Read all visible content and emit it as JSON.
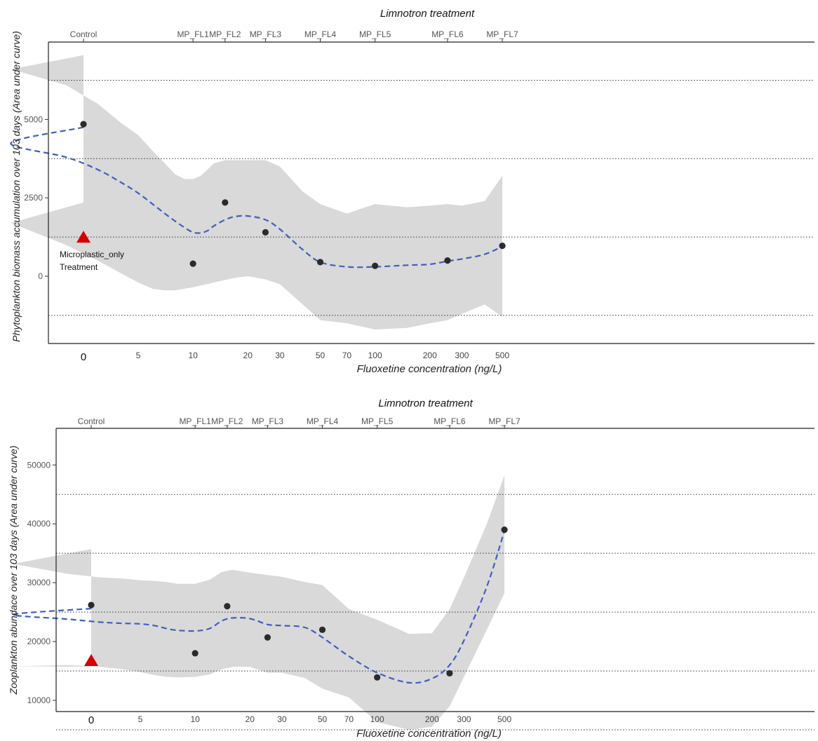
{
  "chart_data": [
    {
      "type": "scatter",
      "title": "Limnotron treatment",
      "xlabel": "Fluoxetine concentration (ng/L)",
      "ylabel": "Phytoplankton biomass accumulation over 103 days (Area under curve)",
      "x_scale": "log",
      "x_ticks": [
        {
          "value": 0,
          "label": "0",
          "zero": true
        },
        {
          "value": 5,
          "label": "5"
        },
        {
          "value": 10,
          "label": "10"
        },
        {
          "value": 20,
          "label": "20"
        },
        {
          "value": 30,
          "label": "30"
        },
        {
          "value": 50,
          "label": "50"
        },
        {
          "value": 70,
          "label": "70"
        },
        {
          "value": 100,
          "label": "100"
        },
        {
          "value": 200,
          "label": "200"
        },
        {
          "value": 300,
          "label": "300"
        },
        {
          "value": 500,
          "label": "500"
        }
      ],
      "top_axis": [
        {
          "value": 0,
          "label": "Control"
        },
        {
          "value": 10,
          "label": "MP_FL1"
        },
        {
          "value": 15,
          "label": "MP_FL2"
        },
        {
          "value": 25,
          "label": "MP_FL3"
        },
        {
          "value": 50,
          "label": "MP_FL4"
        },
        {
          "value": 100,
          "label": "MP_FL5"
        },
        {
          "value": 250,
          "label": "MP_FL6"
        },
        {
          "value": 500,
          "label": "MP_FL7"
        }
      ],
      "y_ticks": [
        {
          "value": 0,
          "label": "0"
        },
        {
          "value": 2500,
          "label": "2500"
        },
        {
          "value": 5000,
          "label": "5000"
        }
      ],
      "ylim": [
        -2170,
        7000
      ],
      "reference_lines": [
        -1250,
        1250,
        3750,
        6250
      ],
      "points": [
        {
          "x": 0,
          "y": 4850
        },
        {
          "x": 10,
          "y": 400
        },
        {
          "x": 15,
          "y": 2350
        },
        {
          "x": 25,
          "y": 1400
        },
        {
          "x": 50,
          "y": 450
        },
        {
          "x": 100,
          "y": 330
        },
        {
          "x": 250,
          "y": 500
        },
        {
          "x": 500,
          "y": 970
        }
      ],
      "microplastic_point": {
        "x": 0,
        "y": 1250,
        "label_lines": [
          "Microplastic_only",
          "Treatment"
        ]
      },
      "trend": {
        "x": [
          0,
          1,
          2,
          3,
          4,
          5,
          6,
          7,
          8,
          9,
          10,
          11,
          12,
          13,
          15,
          17,
          20,
          25,
          30,
          40,
          50,
          70,
          100,
          150,
          200,
          250,
          300,
          400,
          500
        ],
        "y": [
          4750,
          4250,
          3800,
          3400,
          3000,
          2650,
          2300,
          2000,
          1750,
          1550,
          1400,
          1380,
          1450,
          1600,
          1800,
          1900,
          1920,
          1800,
          1500,
          850,
          450,
          300,
          300,
          350,
          380,
          480,
          550,
          700,
          950
        ],
        "lower": [
          2350,
          1700,
          1000,
          500,
          100,
          -200,
          -400,
          -450,
          -450,
          -400,
          -350,
          -300,
          -250,
          -200,
          -120,
          -50,
          0,
          -100,
          -250,
          -900,
          -1400,
          -1500,
          -1700,
          -1650,
          -1500,
          -1400,
          -1200,
          -900,
          -1300
        ],
        "upper": [
          7050,
          6600,
          6100,
          5500,
          4900,
          4500,
          4000,
          3600,
          3250,
          3100,
          3100,
          3200,
          3400,
          3600,
          3700,
          3700,
          3700,
          3700,
          3500,
          2700,
          2300,
          2000,
          2300,
          2200,
          2250,
          2300,
          2250,
          2400,
          3200
        ]
      }
    },
    {
      "type": "scatter",
      "title": "Limnotron treatment",
      "xlabel": "Fluoxetine concentration (ng/L)",
      "ylabel": "Zooplankton abundace over 103 days (Area under curve)",
      "x_scale": "log",
      "x_ticks": [
        {
          "value": 0,
          "label": "0",
          "zero": true
        },
        {
          "value": 5,
          "label": "5"
        },
        {
          "value": 10,
          "label": "10"
        },
        {
          "value": 20,
          "label": "20"
        },
        {
          "value": 30,
          "label": "30"
        },
        {
          "value": 50,
          "label": "50"
        },
        {
          "value": 70,
          "label": "70"
        },
        {
          "value": 100,
          "label": "100"
        },
        {
          "value": 200,
          "label": "200"
        },
        {
          "value": 300,
          "label": "300"
        },
        {
          "value": 500,
          "label": "500"
        }
      ],
      "top_axis": [
        {
          "value": 0,
          "label": "Control"
        },
        {
          "value": 10,
          "label": "MP_FL1"
        },
        {
          "value": 15,
          "label": "MP_FL2"
        },
        {
          "value": 25,
          "label": "MP_FL3"
        },
        {
          "value": 50,
          "label": "MP_FL4"
        },
        {
          "value": 100,
          "label": "MP_FL5"
        },
        {
          "value": 250,
          "label": "MP_FL6"
        },
        {
          "value": 500,
          "label": "MP_FL7"
        }
      ],
      "y_ticks": [
        {
          "value": 10000,
          "label": "10000"
        },
        {
          "value": 20000,
          "label": "20000"
        },
        {
          "value": 30000,
          "label": "30000"
        },
        {
          "value": 40000,
          "label": "40000"
        },
        {
          "value": 50000,
          "label": "50000"
        }
      ],
      "ylim": [
        2200,
        50400
      ],
      "reference_lines": [
        5000,
        15000,
        25000,
        35000,
        45000
      ],
      "points": [
        {
          "x": 0,
          "y": 26200
        },
        {
          "x": 10,
          "y": 18000
        },
        {
          "x": 15,
          "y": 26000
        },
        {
          "x": 25,
          "y": 20700
        },
        {
          "x": 50,
          "y": 22000
        },
        {
          "x": 100,
          "y": 13900
        },
        {
          "x": 250,
          "y": 14600
        },
        {
          "x": 500,
          "y": 39000
        }
      ],
      "microplastic_point": {
        "x": 0,
        "y": 16800
      },
      "trend": {
        "x": [
          0,
          1,
          2,
          3,
          4,
          5,
          6,
          7,
          8,
          10,
          12,
          14,
          16,
          20,
          25,
          30,
          40,
          50,
          70,
          100,
          150,
          200,
          250,
          300,
          400,
          500
        ],
        "y": [
          25600,
          24600,
          23800,
          23300,
          23100,
          23000,
          22700,
          22200,
          21900,
          21800,
          22200,
          23500,
          24000,
          23900,
          22900,
          22700,
          22400,
          20700,
          17500,
          14700,
          13000,
          13700,
          16000,
          20200,
          29300,
          38800
        ],
        "lower": [
          15700,
          15800,
          16000,
          15700,
          15300,
          14800,
          14300,
          14000,
          13900,
          14000,
          14400,
          15300,
          15700,
          15700,
          14700,
          14700,
          13800,
          12000,
          10500,
          6300,
          5000,
          5500,
          9000,
          14000,
          22000,
          28200
        ],
        "upper": [
          35700,
          33200,
          31500,
          30900,
          30700,
          30400,
          30300,
          30100,
          29800,
          29800,
          30500,
          31800,
          32200,
          31700,
          31300,
          31000,
          30100,
          29600,
          25500,
          23700,
          21300,
          21400,
          25500,
          30900,
          40000,
          48200
        ]
      }
    }
  ]
}
